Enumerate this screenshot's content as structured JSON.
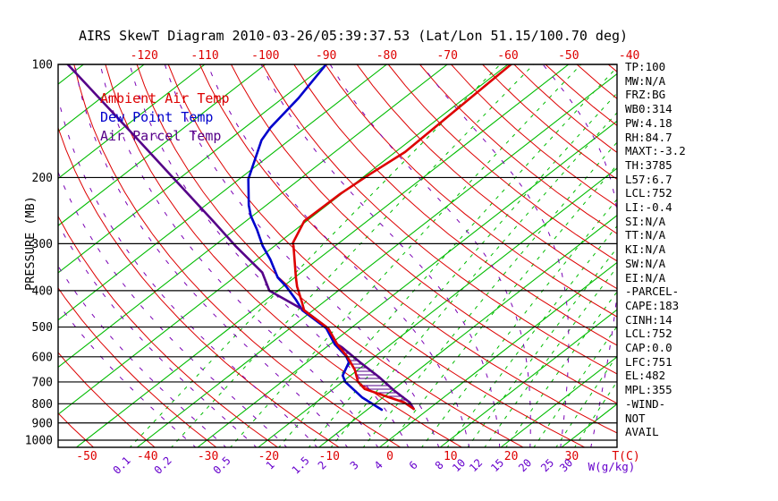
{
  "title": "AIRS SkewT Diagram 2010-03-26/05:39:37.53 (Lat/Lon 51.15/100.70 deg)",
  "legend": {
    "ambient": "Ambient Air Temp",
    "dew": "Dew Point Temp",
    "parcel": "Air Parcel Temp"
  },
  "stats": [
    "TP:100",
    "MW:N/A",
    "FRZ:BG",
    "WB0:314",
    "PW:4.18",
    "RH:84.7",
    "MAXT:-3.2",
    "TH:3785",
    "L57:6.7",
    "LCL:752",
    "LI:-0.4",
    "SI:N/A",
    "TT:N/A",
    "KI:N/A",
    "SW:N/A",
    "EI:N/A",
    "-PARCEL-",
    "CAPE:183",
    "CINH:14",
    "LCL:752",
    "CAP:0.0",
    "LFC:751",
    "EL:482",
    "MPL:355",
    "-WIND-",
    "NOT",
    "AVAIL"
  ],
  "axes": {
    "pressure_label": "PRESSURE (MB)",
    "pressure_ticks": [
      100,
      200,
      300,
      400,
      500,
      600,
      700,
      800,
      900,
      1000
    ],
    "temp_label": "T(C)",
    "mixing_label": "W(g/kg)",
    "top_temp_ticks": [
      -120,
      -110,
      -100,
      -90,
      -80,
      -70,
      -60,
      -50,
      -40
    ],
    "bottom_temp_ticks": [
      -50,
      -40,
      -30,
      -20,
      -10,
      0,
      10,
      20,
      30
    ],
    "mixing_ticks": [
      0.1,
      0.2,
      0.5,
      1,
      1.5,
      2,
      3,
      4,
      6,
      8,
      10,
      12,
      15,
      20,
      25,
      30
    ]
  },
  "colors": {
    "isotherm": "#00bb00",
    "mixing": "#00bb00",
    "dry_adiabat": "#dd0000",
    "moist_adiabat": "#7a00b4",
    "pressure_line": "#000000",
    "ambient": "#dd0000",
    "dew": "#0000cc",
    "parcel": "#550088",
    "hatch": "#550088",
    "tick_red": "#dd0000",
    "tick_purple": "#6600cc",
    "text": "#000000"
  },
  "chart_data": {
    "type": "line",
    "subtype": "skewt-logp",
    "title": "AIRS SkewT Diagram 2010-03-26/05:39:37.53 (Lat/Lon 51.15/100.70 deg)",
    "xlabel": "T(C)",
    "ylabel": "PRESSURE (MB)",
    "pressure_range": [
      100,
      1050
    ],
    "bottom_temp_range": [
      -50,
      30
    ],
    "top_temp_range": [
      -120,
      -40
    ],
    "legend_position": "top-left",
    "grid": true,
    "background": {
      "isotherms": {
        "min": -130,
        "max": 40,
        "step": 10
      },
      "dry_adiabats_theta_c": {
        "min": -50,
        "max": 180,
        "step": 10
      },
      "moist_adiabats_start_c": {
        "min": -30,
        "max": 45,
        "step": 5
      },
      "mixing_ratio_g_kg": [
        0.1,
        0.2,
        0.5,
        1,
        1.5,
        2,
        3,
        4,
        6,
        8,
        10,
        12,
        15,
        20,
        25,
        30
      ]
    },
    "hatch_region": {
      "between": [
        "Air Parcel Temp",
        "Ambient Air Temp"
      ],
      "p_top": 560,
      "p_bottom": 824,
      "meaning": "CAPE area"
    },
    "series": [
      {
        "name": "Ambient Air Temp",
        "color": "#dd0000",
        "points": [
          [
            100,
            -59.5
          ],
          [
            171,
            -58.4
          ],
          [
            196,
            -59.5
          ],
          [
            221,
            -60.2
          ],
          [
            261,
            -60.4
          ],
          [
            299,
            -57.6
          ],
          [
            304,
            -56.9
          ],
          [
            369,
            -49.8
          ],
          [
            390,
            -47.7
          ],
          [
            428,
            -43.7
          ],
          [
            451,
            -41.5
          ],
          [
            504,
            -33.7
          ],
          [
            556,
            -28.8
          ],
          [
            600,
            -24.5
          ],
          [
            650,
            -20.5
          ],
          [
            700,
            -17.4
          ],
          [
            731,
            -14.8
          ],
          [
            764,
            -9.8
          ],
          [
            794,
            -5.4
          ],
          [
            826,
            -2.5
          ]
        ]
      },
      {
        "name": "Dew Point Temp",
        "color": "#0000cc",
        "points": [
          [
            100,
            -90.0
          ],
          [
            123,
            -87.4
          ],
          [
            147,
            -85.8
          ],
          [
            159,
            -84.6
          ],
          [
            202,
            -78.5
          ],
          [
            237,
            -72.9
          ],
          [
            253,
            -70.3
          ],
          [
            275,
            -66.4
          ],
          [
            304,
            -62.0
          ],
          [
            330,
            -57.9
          ],
          [
            369,
            -52.8
          ],
          [
            390,
            -49.5
          ],
          [
            422,
            -45.2
          ],
          [
            451,
            -41.8
          ],
          [
            504,
            -34.0
          ],
          [
            556,
            -29.2
          ],
          [
            597,
            -24.9
          ],
          [
            620,
            -23.1
          ],
          [
            673,
            -21.3
          ],
          [
            700,
            -19.5
          ],
          [
            769,
            -13.5
          ],
          [
            830,
            -7.6
          ]
        ]
      },
      {
        "name": "Air Parcel Temp",
        "color": "#550088",
        "points": [
          [
            100,
            -132.6
          ],
          [
            153,
            -107.2
          ],
          [
            202,
            -90.7
          ],
          [
            263,
            -75.0
          ],
          [
            304,
            -66.5
          ],
          [
            358,
            -56.4
          ],
          [
            400,
            -51.4
          ],
          [
            451,
            -41.5
          ],
          [
            504,
            -33.7
          ],
          [
            556,
            -28.8
          ],
          [
            566,
            -27.4
          ],
          [
            620,
            -21.3
          ],
          [
            678,
            -15.1
          ],
          [
            738,
            -9.6
          ],
          [
            794,
            -4.5
          ],
          [
            826,
            -2.5
          ]
        ]
      }
    ]
  }
}
